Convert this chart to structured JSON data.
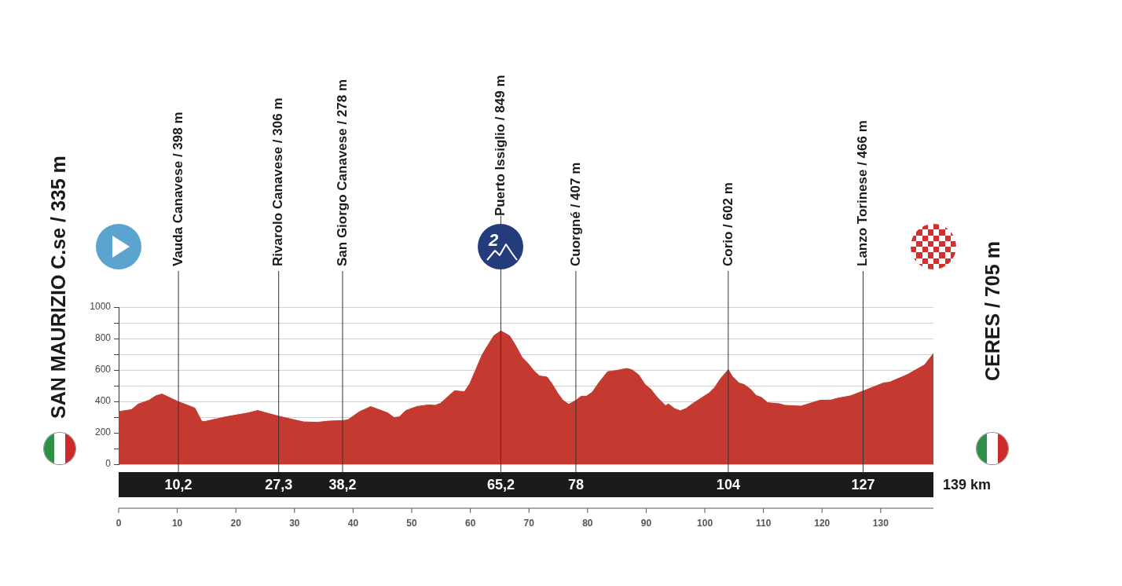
{
  "chart_data": {
    "type": "area",
    "color": "#c43a31",
    "x": [
      0,
      2.2,
      3.3,
      5.2,
      6.3,
      7.4,
      10.2,
      13.0,
      14.2,
      14.7,
      18.3,
      22.1,
      23.7,
      27.3,
      31.5,
      33.9,
      35.9,
      38.2,
      39.1,
      41.1,
      43.0,
      45.9,
      47.0,
      47.9,
      49.0,
      50.9,
      52.9,
      54.0,
      54.9,
      57.3,
      59.0,
      59.9,
      61.0,
      62.0,
      63.0,
      64.0,
      65.2,
      66.7,
      67.7,
      68.8,
      69.8,
      70.9,
      71.8,
      73.1,
      73.9,
      74.9,
      75.8,
      76.8,
      78,
      78.9,
      79.8,
      80.8,
      81.9,
      83.4,
      84.8,
      86.7,
      87.6,
      88.7,
      89.8,
      90.8,
      91.9,
      93.3,
      93.8,
      94.8,
      95.8,
      96.8,
      97.8,
      99.7,
      100.7,
      101.7,
      102.7,
      104,
      104.7,
      105.8,
      106.7,
      107.7,
      108.8,
      109.7,
      110.7,
      112.7,
      113.7,
      116.4,
      117.6,
      119.6,
      121.6,
      122.6,
      124.8,
      127,
      129.3,
      130.5,
      131.5,
      134.5,
      137.5,
      139
    ],
    "values": [
      335,
      348,
      382,
      408,
      435,
      447,
      398,
      358,
      272,
      272,
      302,
      327,
      342,
      306,
      270,
      267,
      275,
      278,
      283,
      335,
      367,
      327,
      297,
      302,
      342,
      368,
      378,
      375,
      388,
      468,
      462,
      513,
      608,
      697,
      758,
      818,
      849,
      818,
      758,
      681,
      644,
      592,
      562,
      555,
      514,
      453,
      407,
      381,
      407,
      433,
      433,
      459,
      518,
      589,
      596,
      610,
      601,
      570,
      508,
      477,
      425,
      373,
      384,
      355,
      340,
      355,
      383,
      429,
      453,
      490,
      546,
      602,
      559,
      518,
      507,
      481,
      437,
      425,
      392,
      385,
      375,
      370,
      384,
      407,
      409,
      420,
      435,
      466,
      500,
      518,
      522,
      570,
      633,
      705
    ],
    "xlim": [
      0,
      139
    ],
    "xticks": [
      0,
      10,
      20,
      30,
      40,
      50,
      60,
      70,
      80,
      90,
      100,
      110,
      120,
      130
    ],
    "x2lim": [
      0,
      139
    ],
    "x2ticks": [
      {
        "value": 10.2,
        "label": "10,2"
      },
      {
        "value": 27.3,
        "label": "27,3"
      },
      {
        "value": 38.2,
        "label": "38,2"
      },
      {
        "value": 65.2,
        "label": "65,2"
      },
      78,
      104,
      127
    ],
    "ylim": [
      0,
      1000
    ],
    "yticks": [
      0,
      {
        "value": 100,
        "label": null
      },
      200,
      {
        "value": 300,
        "label": null
      },
      400,
      {
        "value": 500,
        "label": null
      },
      600,
      {
        "value": 700,
        "label": null
      },
      800,
      {
        "value": 900,
        "label": null
      },
      1000
    ],
    "grid": "y",
    "legend": false,
    "marker": "none",
    "ref_lines": [
      {
        "axis": "x",
        "value": 10.2,
        "label": "Vauda Canavese / 398 m"
      },
      {
        "axis": "x",
        "value": 27.3,
        "label": "Rivarolo Canavese / 306 m"
      },
      {
        "axis": "x",
        "value": 38.2,
        "label": "San Giorgo Canavese / 278 m"
      },
      {
        "axis": "x",
        "value": 65.2,
        "label": "Puerto Issiglio / 849 m"
      },
      {
        "axis": "x",
        "value": 78,
        "label": "Cuorgné / 407 m"
      },
      {
        "axis": "x",
        "value": 104,
        "label": "Corio / 602 m"
      },
      {
        "axis": "x",
        "value": 127,
        "label": "Lanzo Torinese / 466 m"
      }
    ],
    "annotations": [
      "SAN MAURIZIO C.se / 335 m",
      "CERES / 705 m",
      "2",
      "139 km"
    ]
  }
}
